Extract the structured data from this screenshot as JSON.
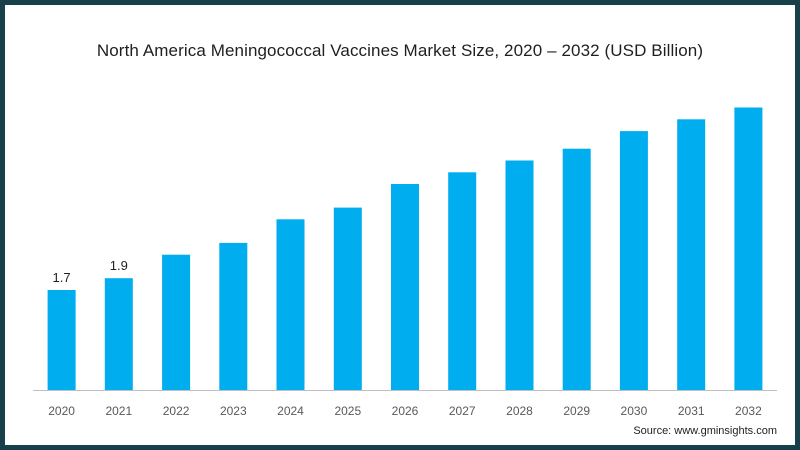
{
  "title": "North America Meningococcal Vaccines Market Size, 2020 – 2032 (USD Billion)",
  "source": "Source: www.gminsights.com",
  "colors": {
    "bar": "#00adef",
    "axis": "#bfbfbf",
    "frame": "#17404a",
    "text": "#1f1f1f",
    "tick": "#595959"
  },
  "chart_data": {
    "type": "bar",
    "title": "North America Meningococcal Vaccines Market Size, 2020 – 2032 (USD Billion)",
    "categories": [
      "2020",
      "2021",
      "2022",
      "2023",
      "2024",
      "2025",
      "2026",
      "2027",
      "2028",
      "2029",
      "2030",
      "2031",
      "2032"
    ],
    "values": [
      1.7,
      1.9,
      2.3,
      2.5,
      2.9,
      3.1,
      3.5,
      3.7,
      3.9,
      4.1,
      4.4,
      4.6,
      4.8
    ],
    "data_labels": [
      "1.7",
      "1.9",
      "",
      "",
      "",
      "",
      "",
      "",
      "",
      "",
      "",
      "",
      ""
    ],
    "xlabel": "",
    "ylabel": "",
    "ylim": [
      0,
      5.2
    ],
    "grid": false,
    "legend": "none"
  }
}
